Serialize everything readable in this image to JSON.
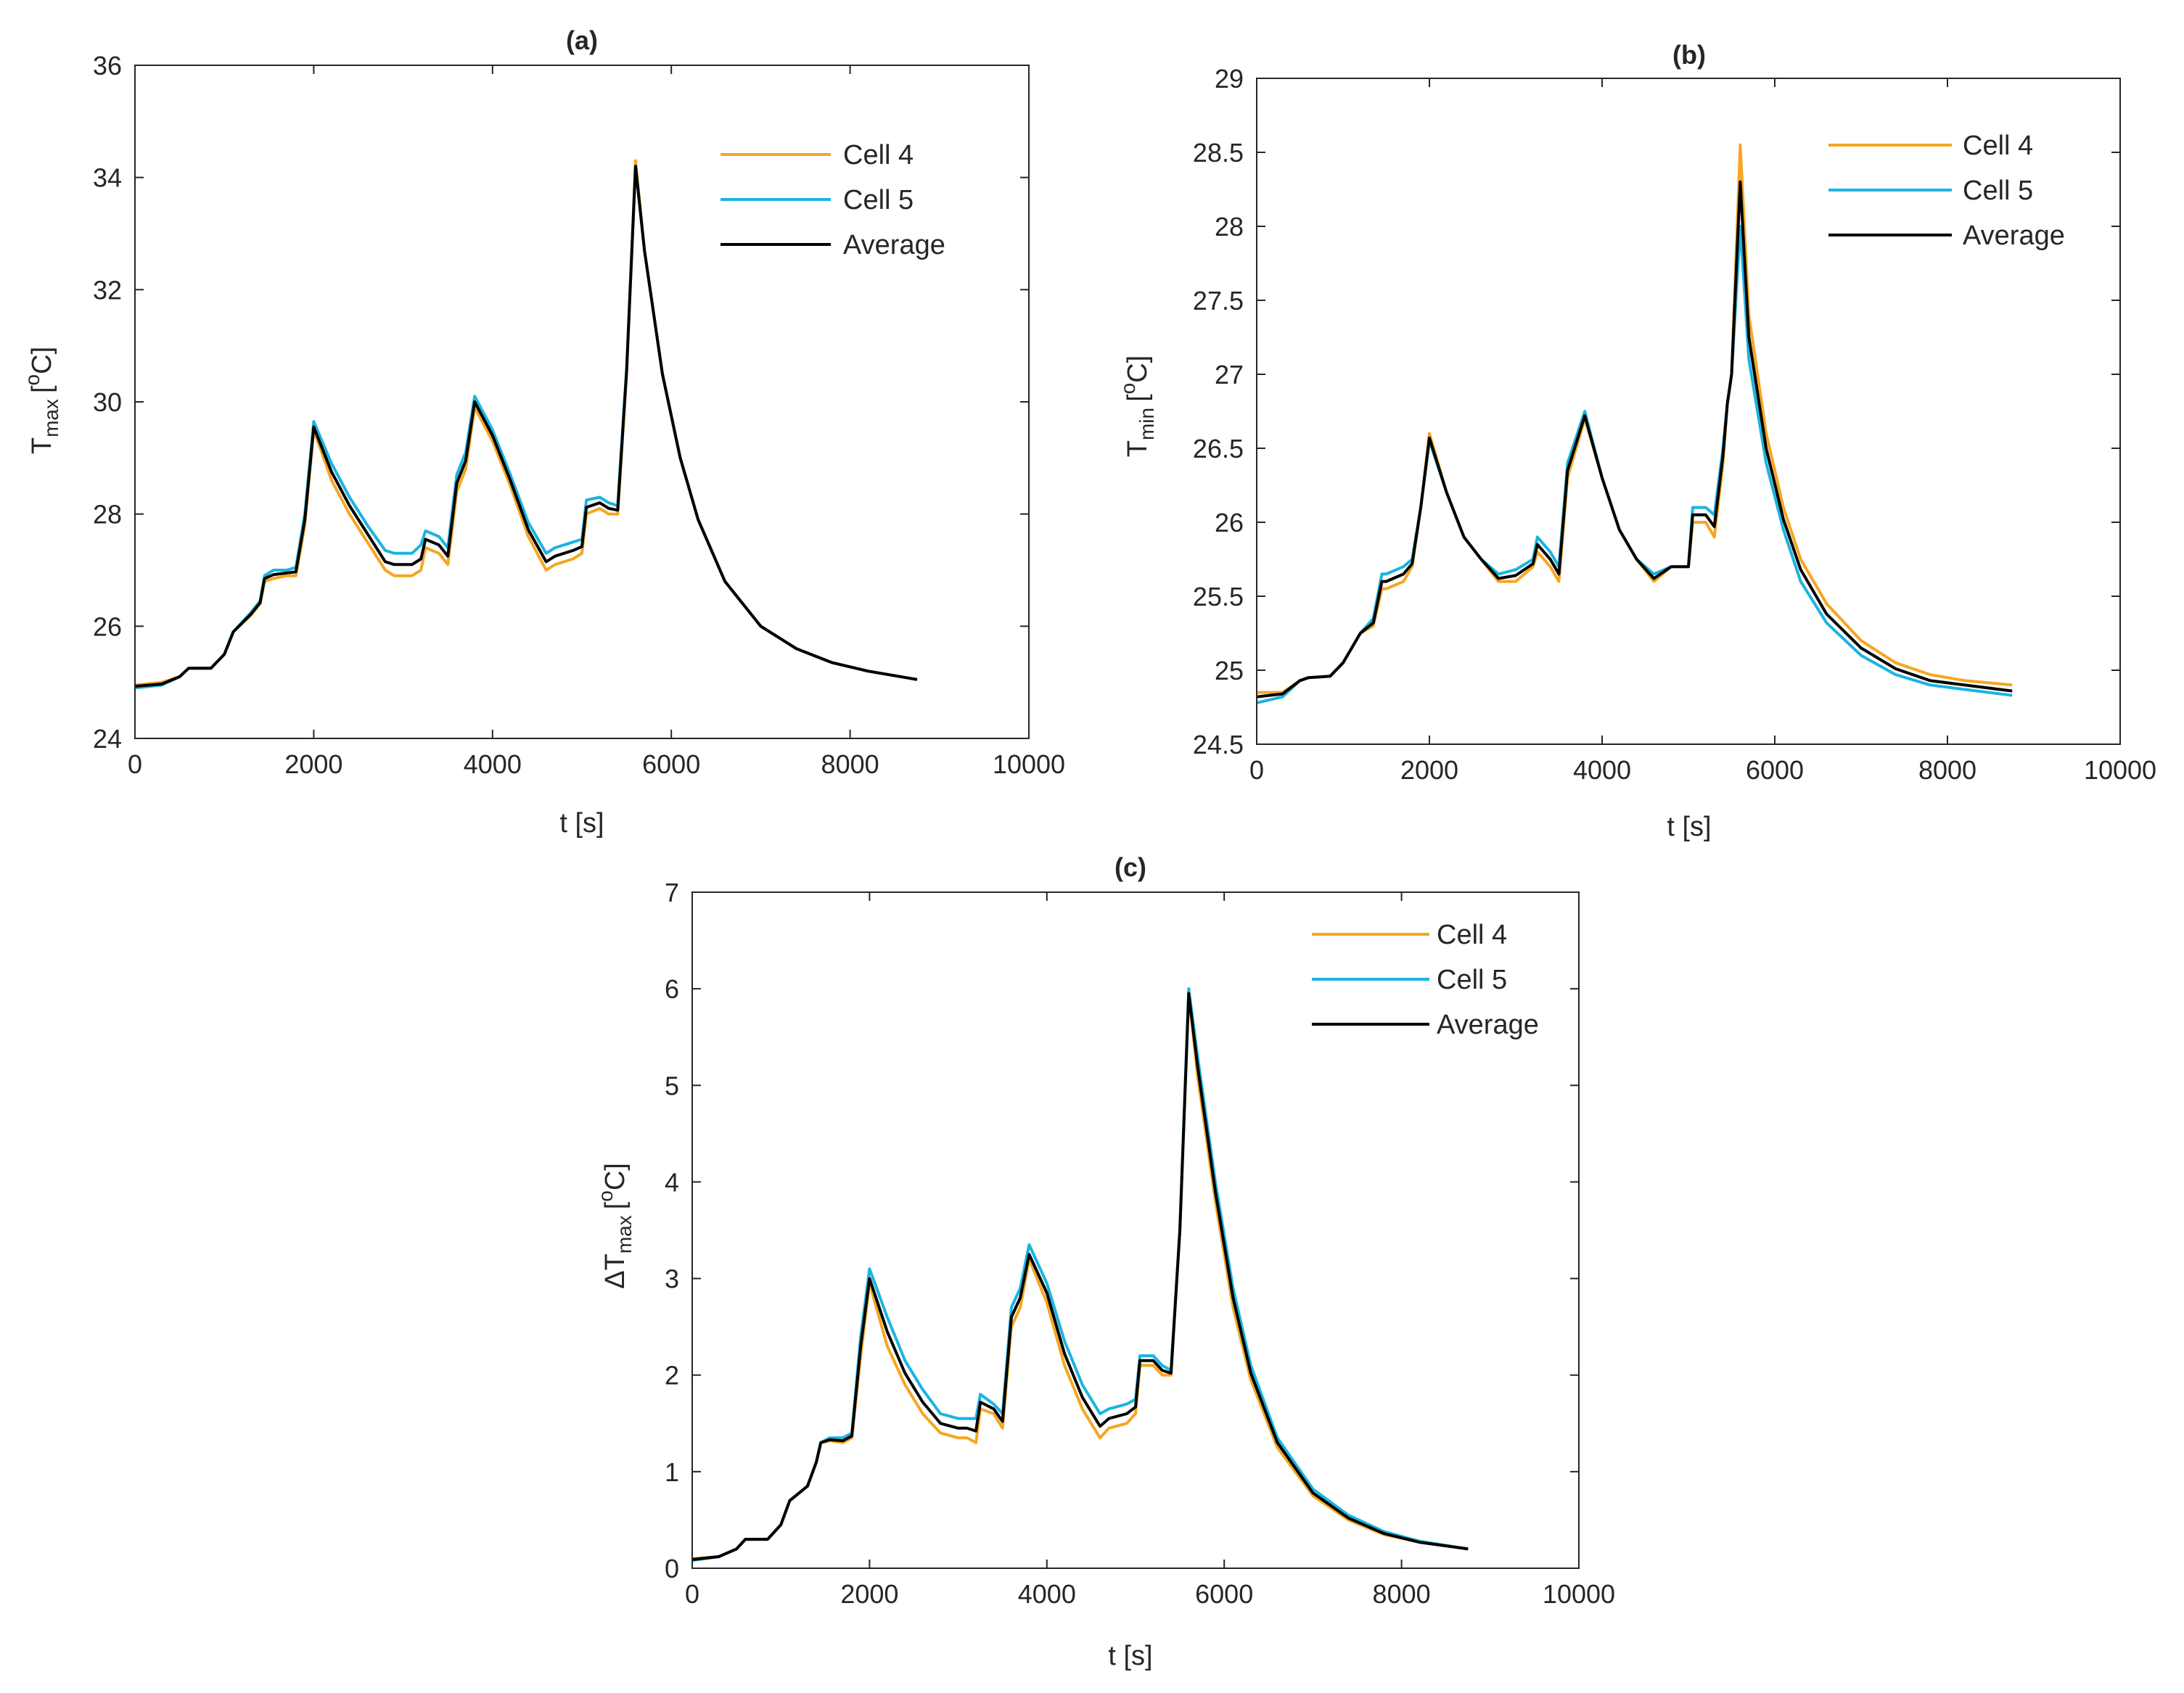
{
  "colors": {
    "cell4": "#F5A623",
    "cell5": "#1BB4E0",
    "average": "#000000"
  },
  "chart_data": [
    {
      "type": "line",
      "title": "(a)",
      "xlabel": "t [s]",
      "ylabel_main": "T",
      "ylabel_sub": "max",
      "ylabel_units": "[",
      "ylabel_degree": "o",
      "ylabel_end": "C]",
      "xlim": [
        0,
        10000
      ],
      "ylim": [
        24,
        36
      ],
      "xticks": [
        0,
        2000,
        4000,
        6000,
        8000,
        10000
      ],
      "xtick_labels": [
        "0",
        "2000",
        "4000",
        "6000",
        "8000",
        "10000"
      ],
      "yticks": [
        24,
        26,
        28,
        30,
        32,
        34,
        36
      ],
      "ytick_labels": [
        "24",
        "26",
        "28",
        "30",
        "32",
        "34",
        "36"
      ],
      "legend": [
        "Cell 4",
        "Cell 5",
        "Average"
      ],
      "legend_position": "top-right",
      "x": [
        0,
        300,
        500,
        600,
        850,
        1000,
        1100,
        1300,
        1400,
        1450,
        1550,
        1700,
        1800,
        1900,
        2000,
        2200,
        2400,
        2600,
        2800,
        2900,
        3100,
        3200,
        3250,
        3400,
        3500,
        3600,
        3700,
        3800,
        4000,
        4200,
        4400,
        4600,
        4700,
        4900,
        5000,
        5050,
        5200,
        5300,
        5400,
        5500,
        5600,
        5700,
        5900,
        6100,
        6300,
        6600,
        7000,
        7400,
        7800,
        8200,
        8750
      ],
      "series": [
        {
          "name": "Cell 4",
          "values": [
            24.95,
            25.0,
            25.1,
            25.25,
            25.25,
            25.5,
            25.9,
            26.2,
            26.4,
            26.8,
            26.85,
            26.9,
            26.9,
            27.8,
            29.5,
            28.6,
            28.0,
            27.5,
            27.0,
            26.9,
            26.9,
            27.0,
            27.4,
            27.3,
            27.1,
            28.4,
            28.8,
            29.9,
            29.3,
            28.5,
            27.6,
            27.0,
            27.1,
            27.2,
            27.3,
            28.0,
            28.1,
            28.0,
            28.0,
            30.5,
            34.3,
            32.7,
            30.5,
            29.0,
            27.9,
            26.8,
            26.0,
            25.6,
            25.35,
            25.2,
            25.05
          ]
        },
        {
          "name": "Cell 5",
          "values": [
            24.9,
            24.95,
            25.1,
            25.25,
            25.25,
            25.5,
            25.9,
            26.25,
            26.45,
            26.9,
            27.0,
            27.0,
            27.05,
            28.0,
            29.65,
            28.9,
            28.3,
            27.8,
            27.35,
            27.3,
            27.3,
            27.45,
            27.7,
            27.6,
            27.4,
            28.7,
            29.1,
            30.1,
            29.5,
            28.7,
            27.85,
            27.3,
            27.4,
            27.5,
            27.55,
            28.25,
            28.3,
            28.2,
            28.15,
            30.6,
            34.2,
            32.7,
            30.5,
            29.0,
            27.9,
            26.8,
            26.0,
            25.6,
            25.35,
            25.2,
            25.05
          ]
        },
        {
          "name": "Average",
          "values": [
            24.93,
            24.97,
            25.1,
            25.25,
            25.25,
            25.5,
            25.9,
            26.22,
            26.42,
            26.85,
            26.92,
            26.95,
            26.97,
            27.9,
            29.55,
            28.75,
            28.15,
            27.65,
            27.15,
            27.1,
            27.1,
            27.2,
            27.55,
            27.45,
            27.25,
            28.55,
            28.95,
            30.0,
            29.4,
            28.6,
            27.72,
            27.15,
            27.25,
            27.35,
            27.42,
            28.12,
            28.2,
            28.1,
            28.07,
            30.55,
            34.2,
            32.7,
            30.5,
            29.0,
            27.9,
            26.8,
            26.0,
            25.6,
            25.35,
            25.2,
            25.05
          ]
        }
      ]
    },
    {
      "type": "line",
      "title": "(b)",
      "xlabel": "t [s]",
      "ylabel_main": "T",
      "ylabel_sub": "min",
      "ylabel_units": "[",
      "ylabel_degree": "o",
      "ylabel_end": "C]",
      "xlim": [
        0,
        10000
      ],
      "ylim": [
        24.5,
        29
      ],
      "xticks": [
        0,
        2000,
        4000,
        6000,
        8000,
        10000
      ],
      "xtick_labels": [
        "0",
        "2000",
        "4000",
        "6000",
        "8000",
        "10000"
      ],
      "yticks": [
        24.5,
        25,
        25.5,
        26,
        26.5,
        27,
        27.5,
        28,
        28.5,
        29
      ],
      "ytick_labels": [
        "24.5",
        "25",
        "25.5",
        "26",
        "26.5",
        "27",
        "27.5",
        "28",
        "28.5",
        "29"
      ],
      "legend": [
        "Cell 4",
        "Cell 5",
        "Average"
      ],
      "legend_position": "top-right",
      "x": [
        0,
        300,
        500,
        600,
        850,
        1000,
        1200,
        1350,
        1450,
        1500,
        1700,
        1800,
        1900,
        2000,
        2200,
        2400,
        2600,
        2800,
        3000,
        3200,
        3250,
        3400,
        3500,
        3600,
        3800,
        4000,
        4200,
        4400,
        4600,
        4800,
        5000,
        5050,
        5200,
        5300,
        5400,
        5450,
        5500,
        5600,
        5700,
        5900,
        6100,
        6300,
        6600,
        7000,
        7400,
        7800,
        8200,
        8750
      ],
      "series": [
        {
          "name": "Cell 4",
          "values": [
            24.85,
            24.85,
            24.93,
            24.95,
            24.96,
            25.05,
            25.25,
            25.3,
            25.55,
            25.55,
            25.6,
            25.7,
            26.1,
            26.6,
            26.2,
            25.9,
            25.75,
            25.6,
            25.6,
            25.7,
            25.8,
            25.7,
            25.6,
            26.3,
            26.7,
            26.3,
            25.95,
            25.75,
            25.6,
            25.7,
            25.7,
            26.0,
            26.0,
            25.9,
            26.4,
            26.8,
            27.0,
            28.55,
            27.4,
            26.6,
            26.1,
            25.75,
            25.45,
            25.2,
            25.05,
            24.97,
            24.93,
            24.9
          ]
        },
        {
          "name": "Cell 5",
          "values": [
            24.78,
            24.82,
            24.93,
            24.95,
            24.96,
            25.05,
            25.25,
            25.35,
            25.65,
            25.65,
            25.7,
            25.75,
            26.1,
            26.55,
            26.2,
            25.9,
            25.75,
            25.65,
            25.68,
            25.75,
            25.9,
            25.8,
            25.7,
            26.4,
            26.75,
            26.3,
            25.95,
            25.75,
            25.65,
            25.7,
            25.7,
            26.1,
            26.1,
            26.05,
            26.5,
            26.8,
            27.0,
            28.0,
            27.1,
            26.4,
            25.95,
            25.6,
            25.32,
            25.1,
            24.97,
            24.9,
            24.87,
            24.83
          ]
        },
        {
          "name": "Average",
          "values": [
            24.82,
            24.84,
            24.93,
            24.95,
            24.96,
            25.05,
            25.25,
            25.32,
            25.6,
            25.6,
            25.65,
            25.72,
            26.1,
            26.57,
            26.2,
            25.9,
            25.75,
            25.62,
            25.64,
            25.72,
            25.85,
            25.75,
            25.65,
            26.35,
            26.72,
            26.3,
            25.95,
            25.75,
            25.62,
            25.7,
            25.7,
            26.05,
            26.05,
            25.97,
            26.45,
            26.8,
            27.0,
            28.3,
            27.25,
            26.5,
            26.02,
            25.68,
            25.38,
            25.15,
            25.01,
            24.93,
            24.9,
            24.86
          ]
        }
      ]
    },
    {
      "type": "line",
      "title": "(c)",
      "xlabel": "t [s]",
      "ylabel_main": "ΔT",
      "ylabel_sub": "max",
      "ylabel_units": "[",
      "ylabel_degree": "o",
      "ylabel_end": "C]",
      "xlim": [
        0,
        10000
      ],
      "ylim": [
        0,
        7
      ],
      "xticks": [
        0,
        2000,
        4000,
        6000,
        8000,
        10000
      ],
      "xtick_labels": [
        "0",
        "2000",
        "4000",
        "6000",
        "8000",
        "10000"
      ],
      "yticks": [
        0,
        1,
        2,
        3,
        4,
        5,
        6,
        7
      ],
      "ytick_labels": [
        "0",
        "1",
        "2",
        "3",
        "4",
        "5",
        "6",
        "7"
      ],
      "legend": [
        "Cell 4",
        "Cell 5",
        "Average"
      ],
      "legend_position": "top-right",
      "x": [
        0,
        300,
        500,
        600,
        850,
        1000,
        1100,
        1300,
        1400,
        1450,
        1550,
        1700,
        1800,
        1900,
        2000,
        2200,
        2400,
        2600,
        2800,
        3000,
        3100,
        3200,
        3250,
        3400,
        3500,
        3600,
        3700,
        3800,
        4000,
        4200,
        4400,
        4600,
        4700,
        4900,
        5000,
        5050,
        5200,
        5300,
        5400,
        5500,
        5600,
        5700,
        5900,
        6100,
        6300,
        6600,
        7000,
        7400,
        7800,
        8200,
        8750
      ],
      "series": [
        {
          "name": "Cell 4",
          "values": [
            0.1,
            0.12,
            0.2,
            0.3,
            0.3,
            0.45,
            0.7,
            0.85,
            1.1,
            1.3,
            1.32,
            1.3,
            1.35,
            2.2,
            2.95,
            2.3,
            1.9,
            1.6,
            1.4,
            1.35,
            1.35,
            1.3,
            1.65,
            1.6,
            1.45,
            2.5,
            2.7,
            3.2,
            2.75,
            2.1,
            1.65,
            1.35,
            1.45,
            1.5,
            1.6,
            2.1,
            2.1,
            2.0,
            2.0,
            3.5,
            5.95,
            5.1,
            3.8,
            2.7,
            1.95,
            1.25,
            0.75,
            0.5,
            0.35,
            0.27,
            0.2
          ]
        },
        {
          "name": "Cell 5",
          "values": [
            0.08,
            0.12,
            0.2,
            0.3,
            0.3,
            0.45,
            0.7,
            0.85,
            1.1,
            1.3,
            1.35,
            1.35,
            1.4,
            2.4,
            3.1,
            2.6,
            2.15,
            1.85,
            1.6,
            1.55,
            1.55,
            1.55,
            1.8,
            1.7,
            1.6,
            2.7,
            2.9,
            3.35,
            2.95,
            2.35,
            1.9,
            1.6,
            1.65,
            1.7,
            1.75,
            2.2,
            2.2,
            2.1,
            2.05,
            3.5,
            6.0,
            5.3,
            4.0,
            2.9,
            2.1,
            1.35,
            0.82,
            0.55,
            0.38,
            0.28,
            0.2
          ]
        },
        {
          "name": "Average",
          "values": [
            0.09,
            0.12,
            0.2,
            0.3,
            0.3,
            0.45,
            0.7,
            0.85,
            1.1,
            1.3,
            1.33,
            1.32,
            1.37,
            2.3,
            3.0,
            2.45,
            2.02,
            1.72,
            1.5,
            1.45,
            1.45,
            1.42,
            1.72,
            1.65,
            1.52,
            2.6,
            2.8,
            3.25,
            2.85,
            2.22,
            1.77,
            1.47,
            1.55,
            1.6,
            1.67,
            2.15,
            2.15,
            2.05,
            2.02,
            3.5,
            5.95,
            5.2,
            3.9,
            2.8,
            2.02,
            1.3,
            0.78,
            0.52,
            0.36,
            0.27,
            0.2
          ]
        }
      ]
    }
  ]
}
